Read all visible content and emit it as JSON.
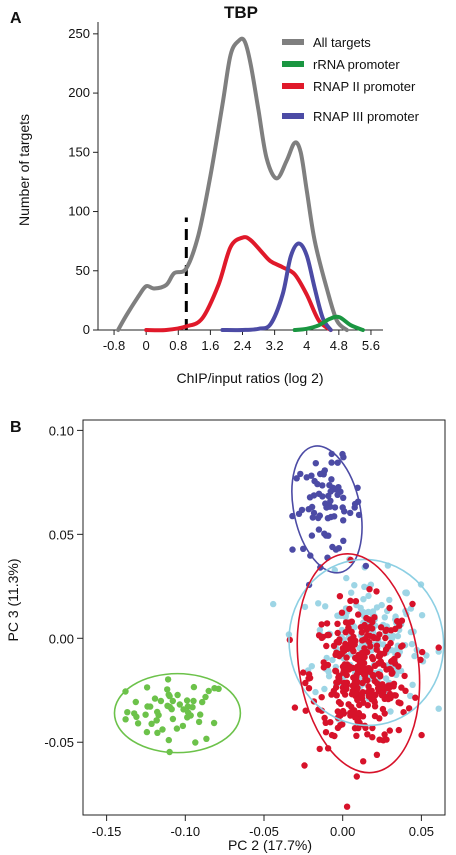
{
  "chart_data": [
    {
      "panel": "A",
      "type": "line",
      "title": "TBP",
      "xlabel": "ChIP/input ratios (log 2)",
      "ylabel": "Number of targets",
      "xlim": [
        -1.2,
        5.9
      ],
      "ylim": [
        0,
        260
      ],
      "xticks": [
        "-0.8",
        "0",
        "0.8",
        "1.6",
        "2.4",
        "3.2",
        "4",
        "4.8",
        "5.6"
      ],
      "xtick_values": [
        -0.8,
        0,
        0.8,
        1.6,
        2.4,
        3.2,
        4,
        4.8,
        5.6
      ],
      "yticks": [
        0,
        50,
        100,
        150,
        200,
        250
      ],
      "grid": false,
      "legend_position": "top-right",
      "threshold_x": 1.0,
      "series": [
        {
          "name": "All targets",
          "color": "#7f7f7f",
          "x": [
            -0.7,
            -0.5,
            -0.2,
            0.0,
            0.2,
            0.5,
            0.7,
            1.0,
            1.3,
            1.6,
            1.9,
            2.1,
            2.3,
            2.45,
            2.6,
            2.8,
            3.0,
            3.25,
            3.5,
            3.7,
            3.85,
            4.0,
            4.2,
            4.5,
            4.75,
            5.0
          ],
          "y": [
            0,
            12,
            28,
            37,
            35,
            38,
            48,
            52,
            80,
            130,
            190,
            232,
            244,
            244,
            225,
            185,
            145,
            128,
            143,
            158,
            150,
            118,
            75,
            35,
            8,
            0
          ]
        },
        {
          "name": "rRNA promoter",
          "color": "#1a9641",
          "x": [
            3.7,
            4.0,
            4.3,
            4.55,
            4.8,
            5.1,
            5.4
          ],
          "y": [
            0,
            1,
            4,
            9,
            11,
            4,
            0
          ]
        },
        {
          "name": "RNAP II promoter",
          "color": "#e0192a",
          "x": [
            0.0,
            0.5,
            1.0,
            1.4,
            1.8,
            2.1,
            2.4,
            2.6,
            2.9,
            3.1,
            3.4,
            3.7,
            4.0,
            4.3,
            4.6
          ],
          "y": [
            0,
            0,
            3,
            10,
            38,
            70,
            78,
            76,
            65,
            58,
            53,
            47,
            30,
            8,
            0
          ]
        },
        {
          "name": "RNAP III promoter",
          "color": "#4c4ba5",
          "x": [
            1.9,
            2.4,
            2.8,
            3.1,
            3.4,
            3.6,
            3.8,
            4.0,
            4.2,
            4.4,
            4.6
          ],
          "y": [
            0,
            0,
            1,
            5,
            30,
            62,
            73,
            63,
            35,
            10,
            0
          ]
        }
      ]
    },
    {
      "panel": "B",
      "type": "scatter",
      "xlabel": "PC 2 (17.7%)",
      "ylabel": "PC 3 (11.3%)",
      "xlim": [
        -0.165,
        0.065
      ],
      "ylim": [
        -0.085,
        0.105
      ],
      "xticks": [
        "-0.15",
        "-0.10",
        "-0.05",
        "0.00",
        "0.05"
      ],
      "xtick_values": [
        -0.15,
        -0.1,
        -0.05,
        0.0,
        0.05
      ],
      "yticks": [
        "-0.05",
        "0.00",
        "0.05",
        "0.10"
      ],
      "ytick_values": [
        -0.05,
        0.0,
        0.05,
        0.1
      ],
      "grid": false,
      "groups": [
        {
          "color": "#6cc24a",
          "center": [
            -0.105,
            -0.035
          ],
          "spread": [
            0.016,
            0.0075
          ],
          "n": 55,
          "ellipse": {
            "cx": -0.105,
            "cy": -0.036,
            "rx": 0.04,
            "ry": 0.019,
            "angle": 0
          }
        },
        {
          "color": "#4c4ba5",
          "center": [
            -0.01,
            0.063
          ],
          "spread": [
            0.011,
            0.011
          ],
          "n": 75,
          "ellipse": {
            "cx": -0.01,
            "cy": 0.062,
            "rx": 0.021,
            "ry": 0.031,
            "angle": 12
          }
        },
        {
          "color": "#9dd5e5",
          "center": [
            0.015,
            -0.002
          ],
          "spread": [
            0.017,
            0.016
          ],
          "n": 200,
          "ellipse": {
            "cx": 0.015,
            "cy": -0.002,
            "rx": 0.049,
            "ry": 0.04,
            "angle": 10
          }
        },
        {
          "color": "#d7122a",
          "center": [
            0.012,
            -0.018
          ],
          "spread": [
            0.016,
            0.017
          ],
          "n": 330,
          "ellipse": {
            "cx": 0.01,
            "cy": -0.012,
            "rx": 0.038,
            "ry": 0.053,
            "angle": 8
          }
        }
      ]
    }
  ]
}
